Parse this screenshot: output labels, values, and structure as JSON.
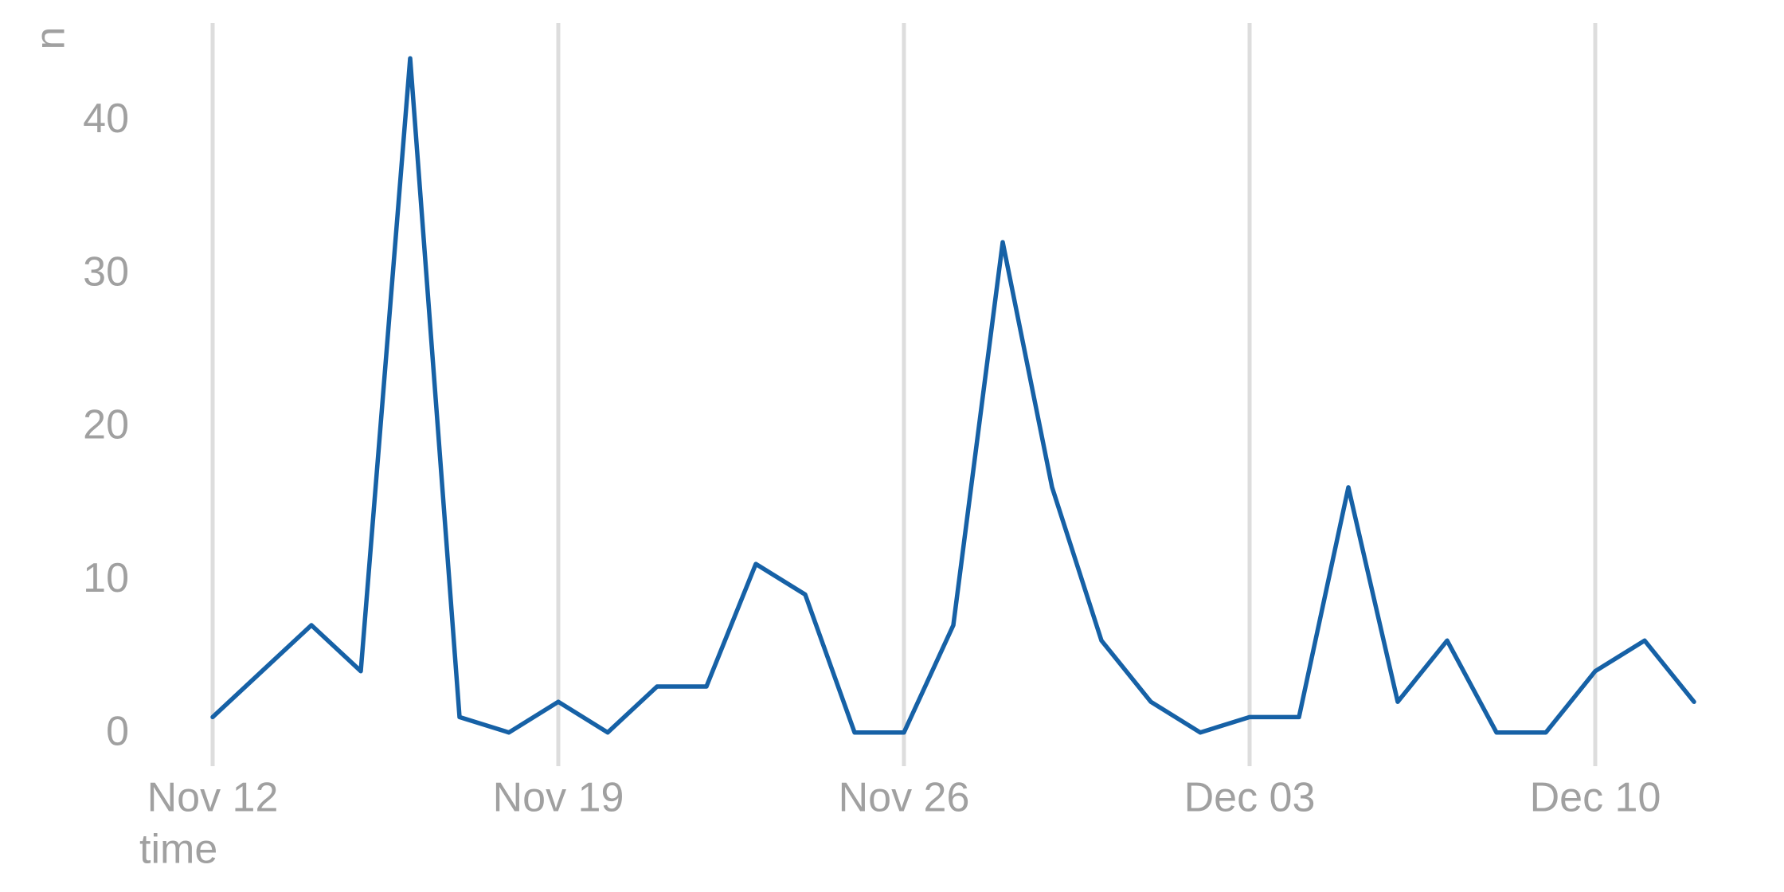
{
  "chart_data": {
    "type": "line",
    "x_label": "time",
    "y_label": "n",
    "x": [
      "Nov 12",
      "Nov 13",
      "Nov 14",
      "Nov 15",
      "Nov 16",
      "Nov 17",
      "Nov 18",
      "Nov 19",
      "Nov 20",
      "Nov 21",
      "Nov 22",
      "Nov 23",
      "Nov 24",
      "Nov 25",
      "Nov 26",
      "Nov 27",
      "Nov 28",
      "Nov 29",
      "Nov 30",
      "Dec 01",
      "Dec 02",
      "Dec 03",
      "Dec 04",
      "Dec 05",
      "Dec 06",
      "Dec 07",
      "Dec 08",
      "Dec 09",
      "Dec 10",
      "Dec 11",
      "Dec 12"
    ],
    "series": [
      {
        "name": "n",
        "color": "#1661a6",
        "values": [
          1,
          4,
          7,
          4,
          44,
          1,
          0,
          2,
          0,
          3,
          3,
          11,
          9,
          0,
          0,
          7,
          32,
          16,
          6,
          2,
          0,
          1,
          1,
          16,
          2,
          6,
          0,
          0,
          4,
          6,
          2
        ]
      }
    ],
    "xticks": [
      "Nov 12",
      "Nov 19",
      "Nov 26",
      "Dec 03",
      "Dec 10"
    ],
    "ylim": [
      -2.2,
      46.3
    ],
    "yticks": [
      0,
      10,
      20,
      30,
      40
    ],
    "grid": "x",
    "legend": false
  }
}
